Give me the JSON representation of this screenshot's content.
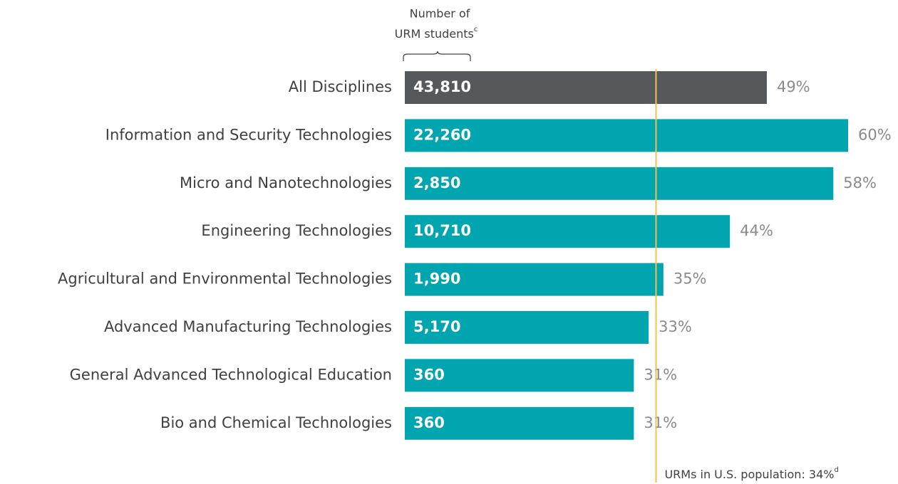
{
  "chart_data": {
    "type": "bar",
    "orientation": "horizontal",
    "count_header": [
      "Number of",
      "URM students"
    ],
    "count_header_note": "c",
    "categories": [
      "All Disciplines",
      "Information and Security Technologies",
      "Micro and Nanotechnologies",
      "Engineering Technologies",
      "Agricultural and Environmental Technologies",
      "Advanced Manufacturing Technologies",
      "General Advanced Technological Education",
      "Bio and Chemical Technologies"
    ],
    "values": [
      49,
      60,
      58,
      44,
      35,
      33,
      31,
      31
    ],
    "value_labels": [
      "49%",
      "60%",
      "58%",
      "44%",
      "35%",
      "33%",
      "31%",
      "31%"
    ],
    "counts": [
      43810,
      22260,
      2850,
      10710,
      1990,
      5170,
      360,
      360
    ],
    "count_labels": [
      "43,810",
      "22,260",
      "2,850",
      "10,710",
      "1,990",
      "5,170",
      "360",
      "360"
    ],
    "colors": [
      "#55595c",
      "#00a5af",
      "#00a5af",
      "#00a5af",
      "#00a5af",
      "#00a5af",
      "#00a5af",
      "#00a5af"
    ],
    "xlim": [
      0,
      60
    ],
    "reference": {
      "value": 34,
      "label": "URMs in U.S. population: 34%",
      "note": "d",
      "color": "#f2c14e"
    }
  }
}
